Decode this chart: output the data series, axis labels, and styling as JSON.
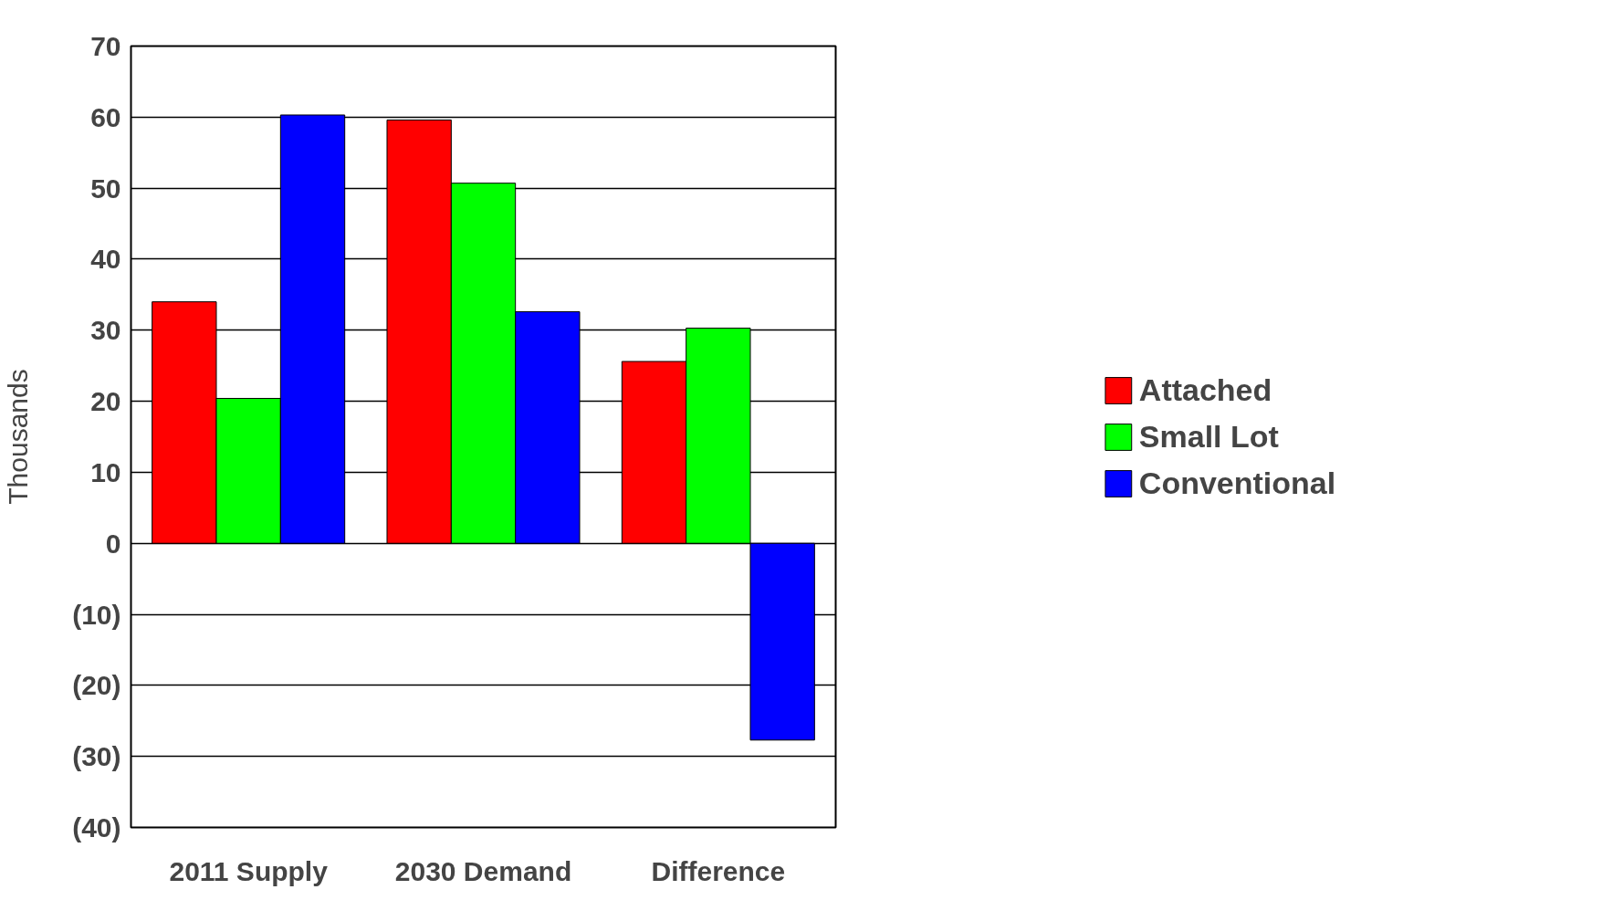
{
  "chart_data": {
    "type": "bar",
    "ylabel": "Thousands",
    "categories": [
      "2011 Supply",
      "2030 Demand",
      "Difference"
    ],
    "series": [
      {
        "name": "Attached",
        "color": "#ff0000",
        "values": [
          34,
          59.6,
          25.6
        ]
      },
      {
        "name": "Small Lot",
        "color": "#00ff00",
        "values": [
          20.4,
          50.7,
          30.3
        ]
      },
      {
        "name": "Conventional",
        "color": "#0000ff",
        "values": [
          60.3,
          32.6,
          -27.7
        ]
      }
    ],
    "ylim": [
      -40,
      70
    ],
    "yticks": [
      {
        "value": -40,
        "label": "(40)"
      },
      {
        "value": -30,
        "label": "(30)"
      },
      {
        "value": -20,
        "label": "(20)"
      },
      {
        "value": -10,
        "label": "(10)"
      },
      0,
      10,
      20,
      30,
      40,
      50,
      60,
      70
    ],
    "grid": "y",
    "legend": "right"
  }
}
